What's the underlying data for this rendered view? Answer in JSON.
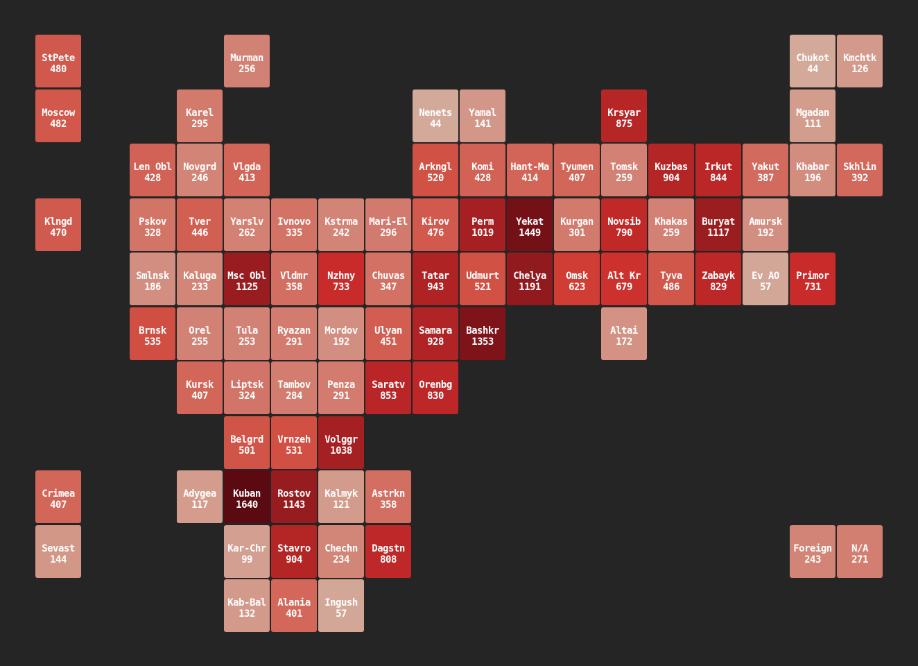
{
  "chart_data": {
    "type": "heatmap",
    "colors": [
      "#d3aa9b",
      "#c81a1f",
      "#5c0a12"
    ],
    "tiles": [
      {
        "name": "StPete",
        "value": 480,
        "col": 0,
        "row": 0
      },
      {
        "name": "Murman",
        "value": 256,
        "col": 4,
        "row": 0
      },
      {
        "name": "Chukot",
        "value": 44,
        "col": 16,
        "row": 0
      },
      {
        "name": "Kmchtk",
        "value": 126,
        "col": 17,
        "row": 0
      },
      {
        "name": "Moscow",
        "value": 482,
        "col": 0,
        "row": 1
      },
      {
        "name": "Karel",
        "value": 295,
        "col": 3,
        "row": 1
      },
      {
        "name": "Nenets",
        "value": 44,
        "col": 8,
        "row": 1
      },
      {
        "name": "Yamal",
        "value": 141,
        "col": 9,
        "row": 1
      },
      {
        "name": "Krsyar",
        "value": 875,
        "col": 12,
        "row": 1
      },
      {
        "name": "Mgadan",
        "value": 111,
        "col": 16,
        "row": 1
      },
      {
        "name": "Len Obl",
        "value": 428,
        "col": 2,
        "row": 2
      },
      {
        "name": "Novgrd",
        "value": 246,
        "col": 3,
        "row": 2
      },
      {
        "name": "Vlgda",
        "value": 413,
        "col": 4,
        "row": 2
      },
      {
        "name": "Arkngl",
        "value": 520,
        "col": 8,
        "row": 2
      },
      {
        "name": "Komi",
        "value": 428,
        "col": 9,
        "row": 2
      },
      {
        "name": "Hant-Ma",
        "value": 414,
        "col": 10,
        "row": 2
      },
      {
        "name": "Tyumen",
        "value": 407,
        "col": 11,
        "row": 2
      },
      {
        "name": "Tomsk",
        "value": 259,
        "col": 12,
        "row": 2
      },
      {
        "name": "Kuzbas",
        "value": 904,
        "col": 13,
        "row": 2
      },
      {
        "name": "Irkut",
        "value": 844,
        "col": 14,
        "row": 2
      },
      {
        "name": "Yakut",
        "value": 387,
        "col": 15,
        "row": 2
      },
      {
        "name": "Khabar",
        "value": 196,
        "col": 16,
        "row": 2
      },
      {
        "name": "Skhlin",
        "value": 392,
        "col": 17,
        "row": 2
      },
      {
        "name": "Klngd",
        "value": 470,
        "col": 0,
        "row": 3
      },
      {
        "name": "Pskov",
        "value": 328,
        "col": 2,
        "row": 3
      },
      {
        "name": "Tver",
        "value": 446,
        "col": 3,
        "row": 3
      },
      {
        "name": "Yarslv",
        "value": 262,
        "col": 4,
        "row": 3
      },
      {
        "name": "Ivnovo",
        "value": 335,
        "col": 5,
        "row": 3
      },
      {
        "name": "Kstrma",
        "value": 242,
        "col": 6,
        "row": 3
      },
      {
        "name": "Mari-El",
        "value": 296,
        "col": 7,
        "row": 3
      },
      {
        "name": "Kirov",
        "value": 476,
        "col": 8,
        "row": 3
      },
      {
        "name": "Perm",
        "value": 1019,
        "col": 9,
        "row": 3
      },
      {
        "name": "Yekat",
        "value": 1449,
        "col": 10,
        "row": 3
      },
      {
        "name": "Kurgan",
        "value": 301,
        "col": 11,
        "row": 3
      },
      {
        "name": "Novsib",
        "value": 790,
        "col": 12,
        "row": 3
      },
      {
        "name": "Khakas",
        "value": 259,
        "col": 13,
        "row": 3
      },
      {
        "name": "Buryat",
        "value": 1117,
        "col": 14,
        "row": 3
      },
      {
        "name": "Amursk",
        "value": 192,
        "col": 15,
        "row": 3
      },
      {
        "name": "Smlnsk",
        "value": 186,
        "col": 2,
        "row": 4
      },
      {
        "name": "Kaluga",
        "value": 233,
        "col": 3,
        "row": 4
      },
      {
        "name": "Msc Obl",
        "value": 1125,
        "col": 4,
        "row": 4
      },
      {
        "name": "Vldmr",
        "value": 358,
        "col": 5,
        "row": 4
      },
      {
        "name": "Nzhny",
        "value": 733,
        "col": 6,
        "row": 4
      },
      {
        "name": "Chuvas",
        "value": 347,
        "col": 7,
        "row": 4
      },
      {
        "name": "Tatar",
        "value": 943,
        "col": 8,
        "row": 4
      },
      {
        "name": "Udmurt",
        "value": 521,
        "col": 9,
        "row": 4
      },
      {
        "name": "Chelya",
        "value": 1191,
        "col": 10,
        "row": 4
      },
      {
        "name": "Omsk",
        "value": 623,
        "col": 11,
        "row": 4
      },
      {
        "name": "Alt Kr",
        "value": 679,
        "col": 12,
        "row": 4
      },
      {
        "name": "Tyva",
        "value": 486,
        "col": 13,
        "row": 4
      },
      {
        "name": "Zabayk",
        "value": 829,
        "col": 14,
        "row": 4
      },
      {
        "name": "Ev AO",
        "value": 57,
        "col": 15,
        "row": 4
      },
      {
        "name": "Primor",
        "value": 731,
        "col": 16,
        "row": 4
      },
      {
        "name": "Brnsk",
        "value": 535,
        "col": 2,
        "row": 5
      },
      {
        "name": "Orel",
        "value": 255,
        "col": 3,
        "row": 5
      },
      {
        "name": "Tula",
        "value": 253,
        "col": 4,
        "row": 5
      },
      {
        "name": "Ryazan",
        "value": 291,
        "col": 5,
        "row": 5
      },
      {
        "name": "Mordov",
        "value": 192,
        "col": 6,
        "row": 5
      },
      {
        "name": "Ulyan",
        "value": 451,
        "col": 7,
        "row": 5
      },
      {
        "name": "Samara",
        "value": 928,
        "col": 8,
        "row": 5
      },
      {
        "name": "Bashkr",
        "value": 1353,
        "col": 9,
        "row": 5
      },
      {
        "name": "Altai",
        "value": 172,
        "col": 12,
        "row": 5
      },
      {
        "name": "Kursk",
        "value": 407,
        "col": 3,
        "row": 6
      },
      {
        "name": "Liptsk",
        "value": 324,
        "col": 4,
        "row": 6
      },
      {
        "name": "Tambov",
        "value": 284,
        "col": 5,
        "row": 6
      },
      {
        "name": "Penza",
        "value": 291,
        "col": 6,
        "row": 6
      },
      {
        "name": "Saratv",
        "value": 853,
        "col": 7,
        "row": 6
      },
      {
        "name": "Orenbg",
        "value": 830,
        "col": 8,
        "row": 6
      },
      {
        "name": "Belgrd",
        "value": 501,
        "col": 4,
        "row": 7
      },
      {
        "name": "Vrnzeh",
        "value": 531,
        "col": 5,
        "row": 7
      },
      {
        "name": "Volggr",
        "value": 1038,
        "col": 6,
        "row": 7
      },
      {
        "name": "Crimea",
        "value": 407,
        "col": 0,
        "row": 8
      },
      {
        "name": "Adygea",
        "value": 117,
        "col": 3,
        "row": 8
      },
      {
        "name": "Kuban",
        "value": 1640,
        "col": 4,
        "row": 8
      },
      {
        "name": "Rostov",
        "value": 1143,
        "col": 5,
        "row": 8
      },
      {
        "name": "Kalmyk",
        "value": 121,
        "col": 6,
        "row": 8
      },
      {
        "name": "Astrkn",
        "value": 358,
        "col": 7,
        "row": 8
      },
      {
        "name": "Sevast",
        "value": 144,
        "col": 0,
        "row": 9
      },
      {
        "name": "Kar-Chr",
        "value": 99,
        "col": 4,
        "row": 9
      },
      {
        "name": "Stavro",
        "value": 904,
        "col": 5,
        "row": 9
      },
      {
        "name": "Chechn",
        "value": 234,
        "col": 6,
        "row": 9
      },
      {
        "name": "Dagstn",
        "value": 808,
        "col": 7,
        "row": 9
      },
      {
        "name": "Foreign",
        "value": 243,
        "col": 16,
        "row": 9
      },
      {
        "name": "N/A",
        "value": 271,
        "col": 17,
        "row": 9
      },
      {
        "name": "Kab-Bal",
        "value": 132,
        "col": 4,
        "row": 10
      },
      {
        "name": "Alania",
        "value": 401,
        "col": 5,
        "row": 10
      },
      {
        "name": "Ingush",
        "value": 57,
        "col": 6,
        "row": 10
      }
    ]
  }
}
